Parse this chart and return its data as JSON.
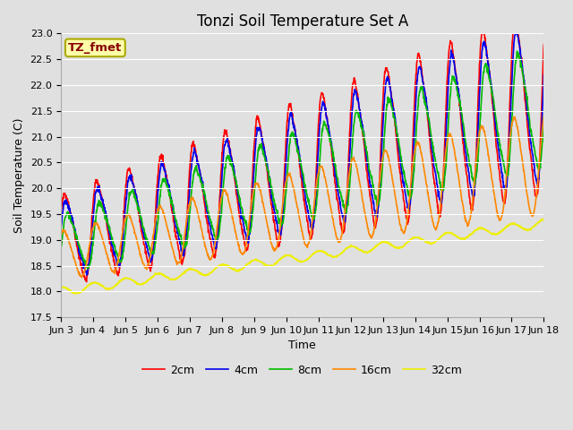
{
  "title": "Tonzi Soil Temperature Set A",
  "xlabel": "Time",
  "ylabel": "Soil Temperature (C)",
  "ylim": [
    17.5,
    23.0
  ],
  "xlim_labels": [
    "Jun 3",
    "Jun 4",
    "Jun 5",
    "Jun 6",
    "Jun 7",
    "Jun 8",
    "Jun 9",
    "Jun 10",
    "Jun 11",
    "Jun 12",
    "Jun 13",
    "Jun 14",
    "Jun 15",
    "Jun 16",
    "Jun 17",
    "Jun 18"
  ],
  "annotation_text": "TZ_fmet",
  "annotation_bg": "#FFFFAA",
  "annotation_border": "#AAAA00",
  "annotation_text_color": "#880000",
  "background_color": "#E0E0E0",
  "series_colors": [
    "#FF0000",
    "#0000EE",
    "#00BB00",
    "#FF8800",
    "#EEEE00"
  ],
  "series_labels": [
    "2cm",
    "4cm",
    "8cm",
    "16cm",
    "32cm"
  ],
  "title_fontsize": 12,
  "axis_label_fontsize": 9,
  "tick_fontsize": 8,
  "legend_fontsize": 9,
  "grid_color": "#FFFFFF",
  "linewidth": 1.2
}
